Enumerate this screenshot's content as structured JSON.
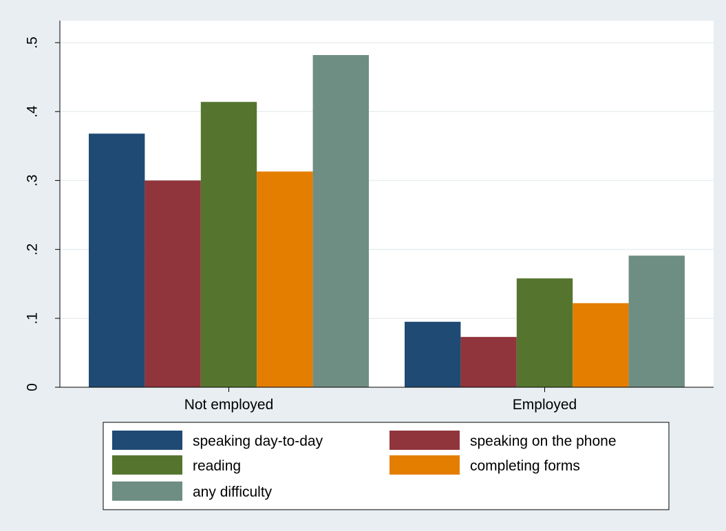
{
  "chart_data": {
    "type": "bar",
    "title": "",
    "xlabel": "",
    "ylabel": "",
    "categories": [
      "Not employed",
      "Employed"
    ],
    "series": [
      {
        "name": "speaking day-to-day",
        "color": "#1f4a73",
        "values": [
          0.368,
          0.095
        ]
      },
      {
        "name": "speaking on the phone",
        "color": "#90353b",
        "values": [
          0.3,
          0.073
        ]
      },
      {
        "name": "reading",
        "color": "#55752f",
        "values": [
          0.414,
          0.158
        ]
      },
      {
        "name": "completing forms",
        "color": "#e37e00",
        "values": [
          0.313,
          0.122
        ]
      },
      {
        "name": "any difficulty",
        "color": "#6e8e84",
        "values": [
          0.482,
          0.191
        ]
      }
    ],
    "ylim": [
      0,
      0.5
    ],
    "yticks": [
      {
        "value": 0,
        "label": "0"
      },
      {
        "value": 0.1,
        "label": ".1"
      },
      {
        "value": 0.2,
        "label": ".2"
      },
      {
        "value": 0.3,
        "label": ".3"
      },
      {
        "value": 0.4,
        "label": ".4"
      },
      {
        "value": 0.5,
        "label": ".5"
      }
    ],
    "grid": true,
    "legend_position": "bottom",
    "colors": {
      "background": "#e8eef1",
      "plot_background": "#ffffff",
      "grid": "#e8eef1"
    }
  }
}
